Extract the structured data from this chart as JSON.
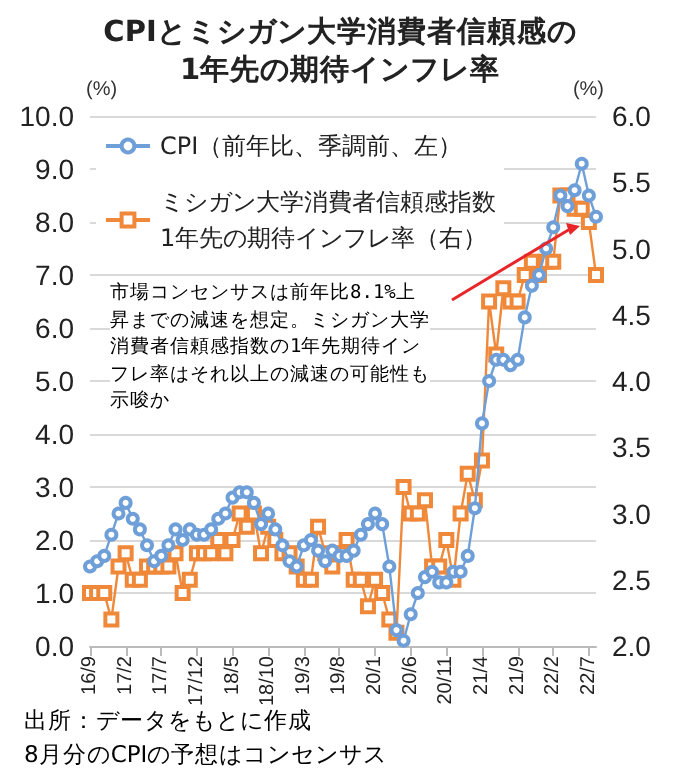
{
  "chart_data": {
    "type": "line",
    "title": "CPIとミシガン大学消費者信頼感の\n1年先の期待インフレ率",
    "ylabel": "(%)",
    "y2label": "(%)",
    "categories": [
      "16/9",
      null,
      null,
      null,
      null,
      "17/2",
      null,
      null,
      null,
      null,
      "17/7",
      null,
      null,
      null,
      null,
      "17/12",
      null,
      null,
      null,
      null,
      "18/5",
      null,
      null,
      null,
      null,
      "18/10",
      null,
      null,
      null,
      null,
      "19/3",
      null,
      null,
      null,
      null,
      "19/8",
      null,
      null,
      null,
      null,
      "20/1",
      null,
      null,
      null,
      null,
      "20/6",
      null,
      null,
      null,
      null,
      "20/11",
      null,
      null,
      null,
      null,
      "21/4",
      null,
      null,
      null,
      null,
      "21/9",
      null,
      null,
      null,
      null,
      "22/2",
      null,
      null,
      null,
      null,
      "22/7",
      null
    ],
    "series": [
      {
        "name": "CPI（前年比、季調前、左）",
        "color": "#6f9fd8",
        "marker": "circle",
        "values": [
          1.5,
          1.6,
          1.7,
          2.1,
          2.5,
          2.7,
          2.4,
          2.2,
          1.9,
          1.6,
          1.7,
          1.9,
          2.2,
          2.0,
          2.2,
          2.1,
          2.1,
          2.2,
          2.4,
          2.5,
          2.8,
          2.9,
          2.9,
          2.7,
          2.3,
          2.5,
          2.2,
          1.9,
          1.6,
          1.5,
          1.9,
          2.0,
          1.8,
          1.6,
          1.8,
          1.7,
          1.7,
          1.8,
          2.1,
          2.3,
          2.5,
          2.3,
          1.5,
          0.3,
          0.1,
          0.6,
          1.0,
          1.3,
          1.4,
          1.2,
          1.2,
          1.4,
          1.4,
          1.7,
          2.6,
          4.2,
          5.0,
          5.4,
          5.4,
          5.3,
          5.4,
          6.2,
          6.8,
          7.0,
          7.5,
          7.9,
          8.5,
          8.3,
          8.6,
          9.1,
          8.5,
          8.1
        ]
      },
      {
        "name": "ミシガン大学消費者信頼感指数\n1年先の期待インフレ率（右）",
        "color": "#f0883a",
        "marker": "square",
        "axis": "y2",
        "values": [
          2.4,
          2.4,
          2.4,
          2.2,
          2.6,
          2.7,
          2.5,
          2.5,
          2.6,
          2.6,
          2.6,
          2.6,
          2.7,
          2.4,
          2.5,
          2.7,
          2.7,
          2.7,
          2.8,
          2.7,
          2.8,
          3.0,
          2.9,
          3.0,
          2.7,
          2.9,
          2.8,
          2.7,
          2.7,
          2.6,
          2.5,
          2.5,
          2.9,
          2.7,
          2.6,
          2.7,
          2.8,
          2.5,
          2.5,
          2.3,
          2.5,
          2.4,
          2.2,
          2.1,
          3.2,
          3.0,
          3.0,
          3.1,
          2.6,
          2.6,
          2.8,
          2.5,
          3.0,
          3.3,
          3.1,
          3.4,
          4.6,
          4.2,
          4.7,
          4.6,
          4.6,
          4.8,
          4.9,
          4.8,
          4.9,
          4.9,
          5.4,
          5.4,
          5.3,
          5.3,
          5.2,
          4.8
        ]
      }
    ],
    "ylim": [
      0,
      10
    ],
    "yticks": [
      {
        "value": 0,
        "label": "0.0"
      },
      {
        "value": 1,
        "label": "1.0"
      },
      {
        "value": 2,
        "label": "2.0"
      },
      {
        "value": 3,
        "label": "3.0"
      },
      {
        "value": 4,
        "label": "4.0"
      },
      {
        "value": 5,
        "label": "5.0"
      },
      {
        "value": 6,
        "label": "6.0"
      },
      {
        "value": 7,
        "label": "7.0"
      },
      {
        "value": 8,
        "label": "8.0"
      },
      {
        "value": 9,
        "label": "9.0"
      },
      {
        "value": 10,
        "label": "10.0"
      }
    ],
    "y2lim": [
      2,
      6
    ],
    "y2ticks": [
      {
        "value": 2,
        "label": "2.0"
      },
      2.5,
      {
        "value": 3,
        "label": "3.0"
      },
      3.5,
      {
        "value": 4,
        "label": "4.0"
      },
      4.5,
      {
        "value": 5,
        "label": "5.0"
      },
      5.5,
      {
        "value": 6,
        "label": "6.0"
      }
    ],
    "grid": "y",
    "legend": "top left",
    "annotations": [
      {
        "text": "市場コンセンサスは前年比8.1%上昇までの減速を想定。ミシガン大学消費者信頼感指数の1年先期待インフレ率はそれ以上の減速の可能性も示唆か"
      },
      "出所：データをもとに作成",
      "8月分のCPIの予想はコンセンサス"
    ]
  }
}
